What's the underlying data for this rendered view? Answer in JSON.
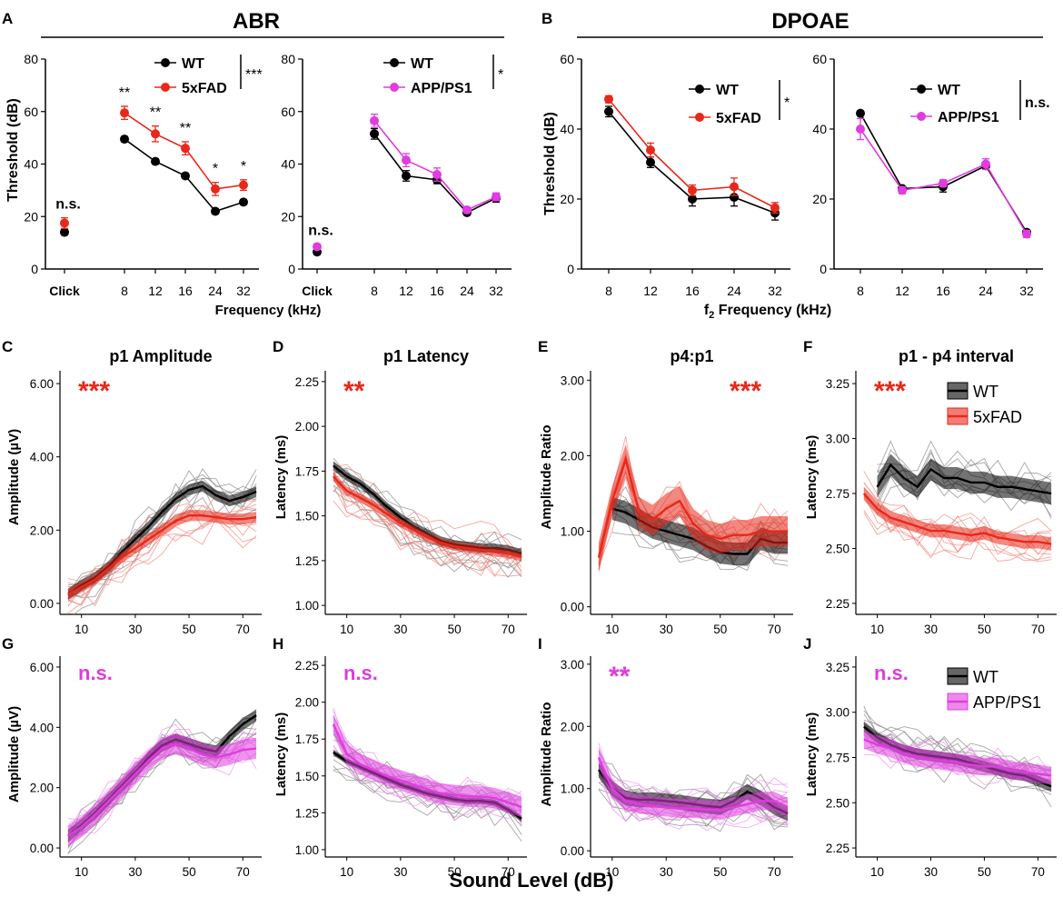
{
  "colors": {
    "wt": "#000000",
    "fad": "#e8281a",
    "app": "#e03ce0",
    "grey": "#8a8a8a",
    "fadLight": "#f08a80",
    "appLight": "#ee90ee"
  },
  "section_titles": {
    "abr": "ABR",
    "dpoae": "DPOAE"
  },
  "panel_letters": {
    "A": "A",
    "B": "B",
    "C": "C",
    "D": "D",
    "E": "E",
    "F": "F",
    "G": "G",
    "H": "H",
    "I": "I",
    "J": "J"
  },
  "shared_labels": {
    "threshold": "Threshold (dB)",
    "frequency": "Frequency (kHz)",
    "f2_frequency_prefix": "f",
    "f2_frequency_sub": "2",
    "f2_frequency_suffix": " Frequency (kHz)",
    "sound_level": "Sound Level (dB)",
    "amplitude": "Amplitude (µV)",
    "latency": "Latency (ms)",
    "amplitude_ratio": "Amplitude Ratio"
  },
  "chart_data": [
    {
      "id": "A1",
      "type": "line",
      "title": "ABR 5xFAD",
      "categories": [
        "Click",
        "8",
        "12",
        "16",
        "24",
        "32"
      ],
      "ylim": [
        0,
        80
      ],
      "yticks": [
        "0",
        "20",
        "40",
        "60",
        "80"
      ],
      "series": [
        {
          "name": "WT",
          "values": [
            14,
            49.5,
            41,
            35.5,
            22,
            25.5
          ],
          "err": [
            1,
            1,
            1,
            1,
            1,
            1
          ]
        },
        {
          "name": "5xFAD",
          "values": [
            17.5,
            59.5,
            51.5,
            46,
            30.5,
            32
          ],
          "err": [
            2,
            2.5,
            3,
            2.5,
            2.5,
            2
          ]
        }
      ],
      "stars": [
        "n.s.",
        "**",
        "**",
        "**",
        "*",
        "*"
      ],
      "overall": "***"
    },
    {
      "id": "A2",
      "type": "line",
      "title": "ABR APP/PS1",
      "categories": [
        "Click",
        "8",
        "12",
        "16",
        "24",
        "32"
      ],
      "ylim": [
        0,
        80
      ],
      "yticks": [
        "0",
        "20",
        "40",
        "60",
        "80"
      ],
      "series": [
        {
          "name": "WT",
          "values": [
            6.5,
            51.5,
            35.5,
            34,
            21.5,
            27
          ],
          "err": [
            1,
            2,
            2,
            1.5,
            1,
            1.5
          ]
        },
        {
          "name": "APP/PS1",
          "values": [
            8.5,
            56.5,
            41.5,
            36,
            22.5,
            27.5
          ],
          "err": [
            1,
            2.5,
            2.5,
            2.5,
            1,
            1.5
          ]
        }
      ],
      "stars": [
        "n.s.",
        "",
        "",
        "",
        "",
        ""
      ],
      "overall": "*"
    },
    {
      "id": "B1",
      "type": "line",
      "title": "DPOAE 5xFAD",
      "categories": [
        "8",
        "12",
        "16",
        "24",
        "32"
      ],
      "ylim": [
        0,
        60
      ],
      "yticks": [
        "0",
        "20",
        "40",
        "60"
      ],
      "series": [
        {
          "name": "WT",
          "values": [
            45,
            30.5,
            20,
            20.5,
            16
          ],
          "err": [
            1.5,
            1.5,
            2,
            2.5,
            2
          ]
        },
        {
          "name": "5xFAD",
          "values": [
            48.5,
            34,
            22.5,
            23.5,
            17.5
          ],
          "err": [
            1,
            2,
            1.5,
            2.5,
            1.5
          ]
        }
      ],
      "overall": "*"
    },
    {
      "id": "B2",
      "type": "line",
      "title": "DPOAE APP/PS1",
      "categories": [
        "8",
        "12",
        "16",
        "24",
        "32"
      ],
      "ylim": [
        0,
        60
      ],
      "yticks": [
        "0",
        "20",
        "40",
        "60"
      ],
      "series": [
        {
          "name": "WT",
          "values": [
            44.5,
            23,
            23.5,
            29.5,
            10.5
          ],
          "err": [
            0.5,
            0.5,
            1.5,
            1,
            0.5
          ]
        },
        {
          "name": "APP/PS1",
          "values": [
            40,
            22.5,
            24.5,
            30,
            10
          ],
          "err": [
            3,
            1,
            1,
            1.5,
            1
          ]
        }
      ],
      "overall": "n.s."
    },
    {
      "id": "C",
      "type": "line",
      "title": "p1 Amplitude",
      "sig": "***",
      "sigColor": "fad",
      "x": [
        5,
        10,
        15,
        20,
        25,
        30,
        35,
        40,
        45,
        50,
        55,
        60,
        65,
        70,
        75
      ],
      "xticks": [
        "10",
        "30",
        "50",
        "70"
      ],
      "xlim": [
        2,
        77
      ],
      "ylim": [
        -0.3,
        6.3
      ],
      "yticks": [
        "0.00",
        "2.00",
        "4.00",
        "6.00"
      ],
      "series": [
        {
          "name": "WT",
          "values": [
            0.25,
            0.5,
            0.7,
            1.0,
            1.4,
            1.75,
            2.1,
            2.5,
            2.85,
            3.1,
            3.2,
            2.95,
            2.8,
            2.9,
            3.05
          ],
          "band": 0.15
        },
        {
          "name": "5xFAD",
          "values": [
            0.25,
            0.45,
            0.65,
            0.95,
            1.25,
            1.5,
            1.75,
            2.0,
            2.25,
            2.4,
            2.4,
            2.35,
            2.3,
            2.3,
            2.35
          ],
          "band": 0.15
        }
      ]
    },
    {
      "id": "D",
      "type": "line",
      "title": "p1 Latency",
      "sig": "**",
      "sigColor": "fad",
      "x": [
        5,
        10,
        15,
        20,
        25,
        30,
        35,
        40,
        45,
        50,
        55,
        60,
        65,
        70,
        75
      ],
      "xticks": [
        "10",
        "30",
        "50",
        "70"
      ],
      "xlim": [
        2,
        77
      ],
      "ylim": [
        0.95,
        2.3
      ],
      "yticks": [
        "1.00",
        "1.25",
        "1.50",
        "1.75",
        "2.00",
        "2.25"
      ],
      "series": [
        {
          "name": "WT",
          "values": [
            1.78,
            1.72,
            1.68,
            1.62,
            1.55,
            1.49,
            1.44,
            1.4,
            1.36,
            1.34,
            1.33,
            1.32,
            1.32,
            1.31,
            1.29
          ],
          "band": 0.025
        },
        {
          "name": "5xFAD",
          "values": [
            1.72,
            1.64,
            1.6,
            1.56,
            1.51,
            1.46,
            1.42,
            1.38,
            1.35,
            1.33,
            1.32,
            1.31,
            1.3,
            1.29,
            1.27
          ],
          "band": 0.025
        }
      ]
    },
    {
      "id": "E",
      "type": "line",
      "title": "p4:p1",
      "sig": "***",
      "sigColor": "fad",
      "x": [
        5,
        10,
        15,
        20,
        25,
        30,
        35,
        40,
        45,
        50,
        55,
        60,
        65,
        70,
        75
      ],
      "xticks": [
        "10",
        "30",
        "50",
        "70"
      ],
      "xlim": [
        2,
        77
      ],
      "ylim": [
        -0.1,
        3.1
      ],
      "yticks": [
        "0.00",
        "1.00",
        "2.00",
        "3.00"
      ],
      "series": [
        {
          "name": "WT",
          "values": [
            null,
            1.3,
            1.25,
            1.15,
            1.05,
            1.0,
            0.95,
            0.9,
            0.8,
            0.72,
            0.7,
            0.7,
            0.9,
            0.85,
            0.85
          ],
          "band": 0.15
        },
        {
          "name": "5xFAD",
          "values": [
            0.65,
            1.4,
            1.95,
            1.25,
            1.15,
            1.3,
            1.4,
            1.1,
            0.95,
            0.9,
            0.95,
            0.95,
            1.0,
            1.0,
            1.0
          ],
          "band": 0.2
        }
      ]
    },
    {
      "id": "F",
      "type": "line",
      "title": "p1 - p4 interval",
      "sig": "***",
      "sigColor": "fad",
      "x": [
        5,
        10,
        15,
        20,
        25,
        30,
        35,
        40,
        45,
        50,
        55,
        60,
        65,
        70,
        75
      ],
      "xticks": [
        "10",
        "30",
        "50",
        "70"
      ],
      "xlim": [
        2,
        77
      ],
      "ylim": [
        2.2,
        3.3
      ],
      "yticks": [
        "2.25",
        "2.50",
        "2.75",
        "3.00",
        "3.25"
      ],
      "legend": [
        "WT",
        "5xFAD"
      ],
      "series": [
        {
          "name": "WT",
          "values": [
            null,
            2.78,
            2.88,
            2.82,
            2.78,
            2.86,
            2.82,
            2.82,
            2.8,
            2.8,
            2.78,
            2.78,
            2.77,
            2.76,
            2.75
          ],
          "band": 0.05
        },
        {
          "name": "5xFAD",
          "values": [
            2.75,
            2.68,
            2.64,
            2.62,
            2.6,
            2.58,
            2.58,
            2.57,
            2.56,
            2.57,
            2.55,
            2.54,
            2.53,
            2.53,
            2.52
          ],
          "band": 0.03
        }
      ]
    },
    {
      "id": "G",
      "type": "line",
      "title": "",
      "sig": "n.s.",
      "sigColor": "app",
      "x": [
        5,
        10,
        15,
        20,
        25,
        30,
        35,
        40,
        45,
        50,
        55,
        60,
        65,
        70,
        75
      ],
      "xticks": [
        "10",
        "30",
        "50",
        "70"
      ],
      "xlim": [
        2,
        77
      ],
      "ylim": [
        -0.3,
        6.3
      ],
      "yticks": [
        "0.00",
        "2.00",
        "4.00",
        "6.00"
      ],
      "series": [
        {
          "name": "WT",
          "values": [
            0.4,
            0.75,
            1.15,
            1.6,
            2.05,
            2.5,
            3.0,
            3.4,
            3.6,
            3.45,
            3.3,
            3.2,
            3.7,
            4.1,
            4.4
          ],
          "band": 0.2
        },
        {
          "name": "APP/PS1",
          "values": [
            0.4,
            0.7,
            1.1,
            1.55,
            2.0,
            2.45,
            2.9,
            3.3,
            3.45,
            3.3,
            3.1,
            3.0,
            3.1,
            3.25,
            3.3
          ],
          "band": 0.35
        }
      ]
    },
    {
      "id": "H",
      "type": "line",
      "title": "",
      "sig": "n.s.",
      "sigColor": "app",
      "x": [
        5,
        10,
        15,
        20,
        25,
        30,
        35,
        40,
        45,
        50,
        55,
        60,
        65,
        70,
        75
      ],
      "xticks": [
        "10",
        "30",
        "50",
        "70"
      ],
      "xlim": [
        2,
        77
      ],
      "ylim": [
        0.95,
        2.3
      ],
      "yticks": [
        "1.00",
        "1.25",
        "1.50",
        "1.75",
        "2.00",
        "2.25"
      ],
      "series": [
        {
          "name": "WT",
          "values": [
            1.66,
            1.6,
            1.56,
            1.52,
            1.48,
            1.44,
            1.41,
            1.38,
            1.36,
            1.34,
            1.33,
            1.33,
            1.32,
            1.27,
            1.21
          ],
          "band": 0.02
        },
        {
          "name": "APP/PS1",
          "values": [
            1.85,
            1.65,
            1.58,
            1.54,
            1.5,
            1.47,
            1.44,
            1.41,
            1.38,
            1.37,
            1.36,
            1.36,
            1.35,
            1.32,
            1.29
          ],
          "band": 0.07
        }
      ]
    },
    {
      "id": "I",
      "type": "line",
      "title": "",
      "sig": "**",
      "sigColor": "app",
      "x": [
        5,
        10,
        15,
        20,
        25,
        30,
        35,
        40,
        45,
        50,
        55,
        60,
        65,
        70,
        75
      ],
      "xticks": [
        "10",
        "30",
        "50",
        "70"
      ],
      "xlim": [
        2,
        77
      ],
      "ylim": [
        -0.1,
        3.1
      ],
      "yticks": [
        "0.00",
        "1.00",
        "2.00",
        "3.00"
      ],
      "series": [
        {
          "name": "WT",
          "values": [
            1.3,
            1.0,
            0.85,
            0.82,
            0.82,
            0.8,
            0.78,
            0.75,
            0.72,
            0.7,
            0.8,
            0.95,
            0.85,
            0.7,
            0.6
          ],
          "band": 0.12
        },
        {
          "name": "APP/PS1",
          "values": [
            1.5,
            1.0,
            0.8,
            0.75,
            0.72,
            0.7,
            0.68,
            0.68,
            0.66,
            0.65,
            0.7,
            0.75,
            0.8,
            0.8,
            0.7
          ],
          "band": 0.15
        }
      ]
    },
    {
      "id": "J",
      "type": "line",
      "title": "",
      "sig": "n.s.",
      "sigColor": "app",
      "x": [
        5,
        10,
        15,
        20,
        25,
        30,
        35,
        40,
        45,
        50,
        55,
        60,
        65,
        70,
        75
      ],
      "xticks": [
        "10",
        "30",
        "50",
        "70"
      ],
      "xlim": [
        2,
        77
      ],
      "ylim": [
        2.2,
        3.3
      ],
      "yticks": [
        "2.25",
        "2.50",
        "2.75",
        "3.00",
        "3.25"
      ],
      "legend": [
        "WT",
        "APP/PS1"
      ],
      "series": [
        {
          "name": "WT",
          "values": [
            2.92,
            2.86,
            2.82,
            2.79,
            2.77,
            2.76,
            2.75,
            2.74,
            2.72,
            2.7,
            2.68,
            2.66,
            2.65,
            2.62,
            2.59
          ],
          "band": 0.03
        },
        {
          "name": "APP/PS1",
          "values": [
            2.85,
            2.82,
            2.8,
            2.77,
            2.75,
            2.74,
            2.73,
            2.72,
            2.71,
            2.7,
            2.7,
            2.68,
            2.67,
            2.66,
            2.65
          ],
          "band": 0.05
        }
      ]
    }
  ]
}
